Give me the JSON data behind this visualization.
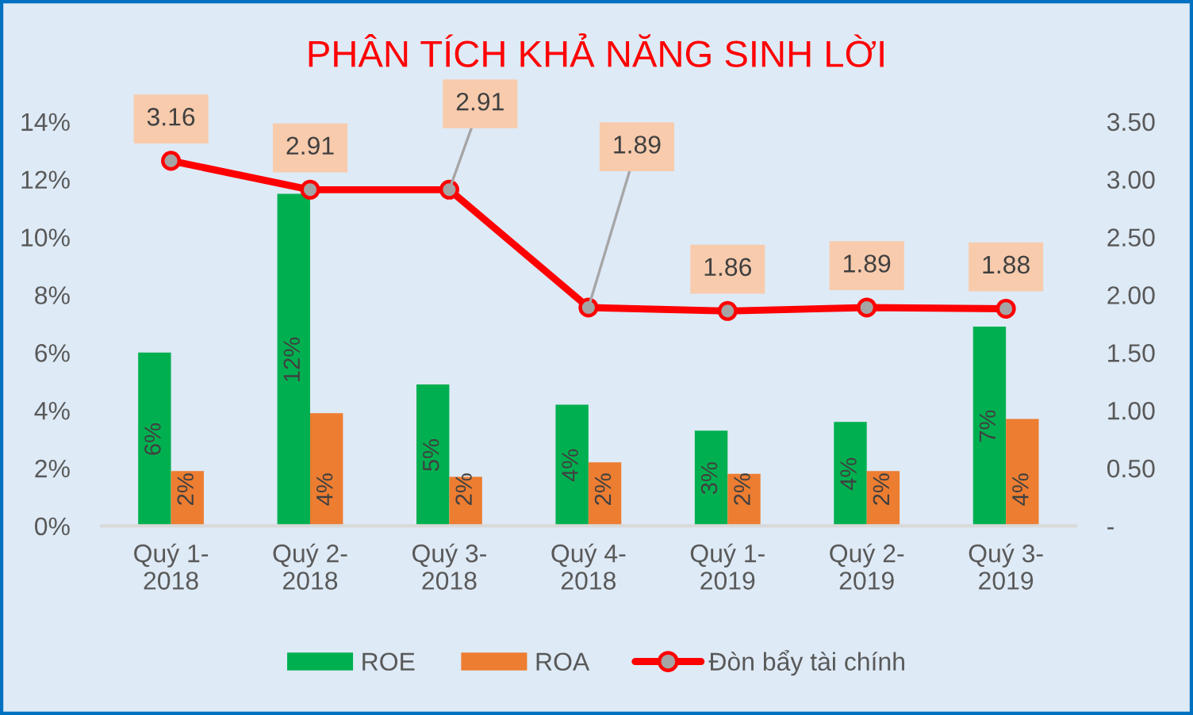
{
  "chart_data": {
    "type": "bar",
    "title": "PHÂN TÍCH KHẢ NĂNG SINH LỜI",
    "categories": [
      "Quý 1-\n2018",
      "Quý 2-\n2018",
      "Quý 3-\n2018",
      "Quý 4-\n2018",
      "Quý 1-\n2019",
      "Quý 2-\n2019",
      "Quý 3-\n2019"
    ],
    "series": [
      {
        "name": "ROE",
        "color": "#00b050",
        "values": [
          6.0,
          11.5,
          4.9,
          4.2,
          3.3,
          3.6,
          6.9
        ],
        "value_labels": [
          "6%",
          "12%",
          "5%",
          "4%",
          "3%",
          "4%",
          "7%"
        ]
      },
      {
        "name": "ROA",
        "color": "#ed7d31",
        "values": [
          1.9,
          3.9,
          1.7,
          2.2,
          1.8,
          1.9,
          3.7
        ],
        "value_labels": [
          "2%",
          "4%",
          "2%",
          "2%",
          "2%",
          "2%",
          "4%"
        ]
      },
      {
        "name": "Đòn bẩy tài chính",
        "type": "line",
        "axis": "y2",
        "color": "#ff0000",
        "colors": [
          "#a5a5a5",
          "#a5a5a5",
          "#a5a5a5",
          "#a5a5a5",
          "#a5a5a5",
          "#a5a5a5",
          "#a5a5a5"
        ],
        "values": [
          3.16,
          2.91,
          2.91,
          1.89,
          1.86,
          1.89,
          1.88
        ],
        "value_labels": [
          "3.16",
          "2.91",
          "2.91",
          "1.89",
          "1.86",
          "1.89",
          "1.88"
        ]
      }
    ],
    "ylim": [
      0,
      14
    ],
    "yticks": [
      {
        "value": 0,
        "label": "0%"
      },
      {
        "value": 2,
        "label": "2%"
      },
      {
        "value": 4,
        "label": "4%"
      },
      {
        "value": 6,
        "label": "6%"
      },
      {
        "value": 8,
        "label": "8%"
      },
      {
        "value": 10,
        "label": "10%"
      },
      {
        "value": 12,
        "label": "12%"
      },
      {
        "value": 14,
        "label": "14%"
      }
    ],
    "y2lim": [
      0,
      3.5
    ],
    "y2ticks": [
      {
        "value": 0,
        "label": "-"
      },
      {
        "value": 0.5,
        "label": "0.50"
      },
      {
        "value": 1.0,
        "label": "1.00"
      },
      {
        "value": 1.5,
        "label": "1.50"
      },
      {
        "value": 2.0,
        "label": "2.00"
      },
      {
        "value": 2.5,
        "label": "2.50"
      },
      {
        "value": 3.0,
        "label": "3.00"
      },
      {
        "value": 3.5,
        "label": "3.50"
      }
    ],
    "legend": "bottom",
    "marker": "circle",
    "line_style": "solid"
  }
}
